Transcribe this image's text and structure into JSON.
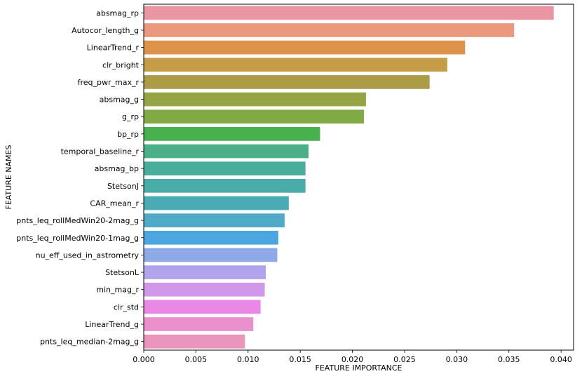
{
  "chart_data": {
    "type": "bar",
    "orientation": "horizontal",
    "xlabel": "FEATURE IMPORTANCE",
    "ylabel": "FEATURE NAMES",
    "xlim": [
      0.0,
      0.0412
    ],
    "x_ticks": [
      "0.000",
      "0.005",
      "0.010",
      "0.015",
      "0.020",
      "0.025",
      "0.030",
      "0.035",
      "0.040"
    ],
    "x_tick_values": [
      0.0,
      0.005,
      0.01,
      0.015,
      0.02,
      0.025,
      0.03,
      0.035,
      0.04
    ],
    "grid": false,
    "categories": [
      "absmag_rp",
      "Autocor_length_g",
      "LinearTrend_r",
      "clr_bright",
      "freq_pwr_max_r",
      "absmag_g",
      "g_rp",
      "bp_rp",
      "temporal_baseline_r",
      "absmag_bp",
      "StetsonJ",
      "CAR_mean_r",
      "pnts_leq_rollMedWin20-2mag_g",
      "pnts_leq_rollMedWin20-1mag_g",
      "nu_eff_used_in_astrometry",
      "StetsonL",
      "min_mag_r",
      "clr_std",
      "LinearTrend_g",
      "pnts_leq_median-2mag_g"
    ],
    "values": [
      0.0393,
      0.0355,
      0.0308,
      0.0291,
      0.0274,
      0.0213,
      0.0211,
      0.0169,
      0.0158,
      0.0155,
      0.0155,
      0.0139,
      0.0135,
      0.0129,
      0.0128,
      0.0117,
      0.0116,
      0.0112,
      0.0105,
      0.0097
    ],
    "colors": [
      "#ea96a2",
      "#eb987d",
      "#dd944a",
      "#c59d47",
      "#ad9c46",
      "#97a444",
      "#7faa44",
      "#48b14f",
      "#4bb088",
      "#48ae9c",
      "#48aca9",
      "#4aabb5",
      "#4da9c6",
      "#4ba6df",
      "#8fa8e8",
      "#b3a2ec",
      "#d098e8",
      "#ea88e6",
      "#ec8fcd",
      "#ec95bc"
    ]
  }
}
